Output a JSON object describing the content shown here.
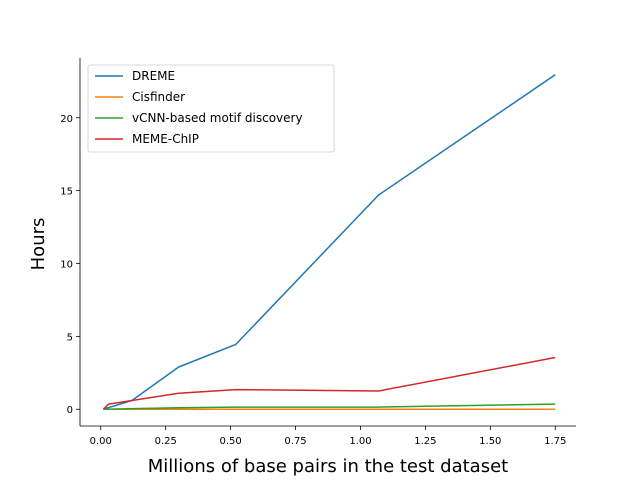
{
  "chart_data": {
    "type": "line",
    "title": "",
    "xlabel": "Millions of base pairs in the test dataset",
    "ylabel": "Hours",
    "xlim": [
      -0.08,
      1.83
    ],
    "ylim": [
      -1.15,
      24.1
    ],
    "xticks": [
      0.0,
      0.25,
      0.5,
      0.75,
      1.0,
      1.25,
      1.5,
      1.75
    ],
    "xtick_labels": [
      "0.00",
      "0.25",
      "0.50",
      "0.75",
      "1.00",
      "1.25",
      "1.50",
      "1.75"
    ],
    "yticks": [
      0,
      5,
      10,
      15,
      20
    ],
    "ytick_labels": [
      "0",
      "5",
      "10",
      "15",
      "20"
    ],
    "grid": false,
    "legend_position": "top-left",
    "series": [
      {
        "name": "DREME",
        "color": "#1f77b4",
        "x": [
          0.01,
          0.12,
          0.3,
          0.52,
          1.07,
          1.75
        ],
        "y": [
          0.0,
          0.6,
          2.9,
          4.45,
          14.7,
          22.95
        ]
      },
      {
        "name": "Cisfinder",
        "color": "#ff7f0e",
        "x": [
          0.01,
          0.3,
          0.52,
          1.07,
          1.75
        ],
        "y": [
          0.0,
          0.0,
          0.0,
          0.0,
          0.0
        ]
      },
      {
        "name": "vCNN-based motif discovery",
        "color": "#2ca02c",
        "x": [
          0.01,
          0.3,
          0.52,
          1.07,
          1.75
        ],
        "y": [
          0.0,
          0.1,
          0.15,
          0.15,
          0.35
        ]
      },
      {
        "name": "MEME-ChIP",
        "color": "#d62728",
        "x": [
          0.01,
          0.03,
          0.3,
          0.52,
          1.07,
          1.75
        ],
        "y": [
          0.0,
          0.35,
          1.1,
          1.35,
          1.25,
          3.55
        ]
      }
    ]
  }
}
